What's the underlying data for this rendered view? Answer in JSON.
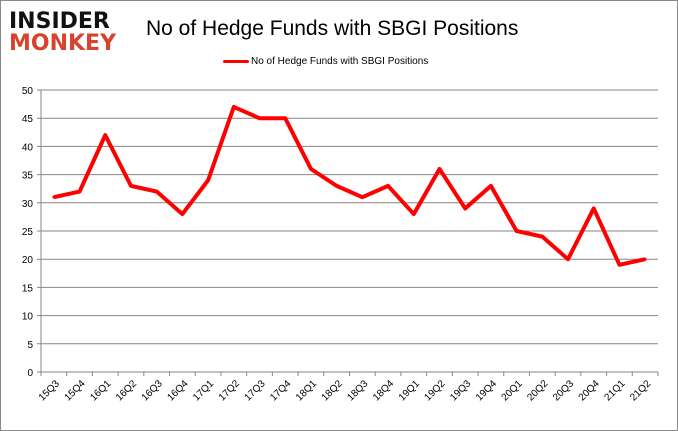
{
  "logo": {
    "line1": "INSIDER",
    "line2": "MONKEY"
  },
  "chart_data": {
    "type": "line",
    "title": "No of Hedge Funds with SBGI Positions",
    "xlabel": "",
    "ylabel": "",
    "ylim": [
      0,
      50
    ],
    "yticks": [
      0,
      5,
      10,
      15,
      20,
      25,
      30,
      35,
      40,
      45,
      50
    ],
    "grid": true,
    "legend_position": "top",
    "categories": [
      "15Q3",
      "15Q4",
      "16Q1",
      "16Q2",
      "16Q3",
      "16Q4",
      "17Q1",
      "17Q2",
      "17Q3",
      "17Q4",
      "18Q1",
      "18Q2",
      "18Q3",
      "18Q4",
      "19Q1",
      "19Q2",
      "19Q3",
      "19Q4",
      "20Q1",
      "20Q2",
      "20Q3",
      "20Q4",
      "21Q1",
      "21Q2"
    ],
    "series": [
      {
        "name": "No of Hedge Funds with SBGI Positions",
        "color": "#ff0000",
        "values": [
          31,
          32,
          42,
          33,
          32,
          28,
          34,
          47,
          45,
          45,
          36,
          33,
          31,
          33,
          28,
          36,
          29,
          33,
          25,
          24,
          20,
          29,
          19,
          20
        ]
      }
    ]
  }
}
